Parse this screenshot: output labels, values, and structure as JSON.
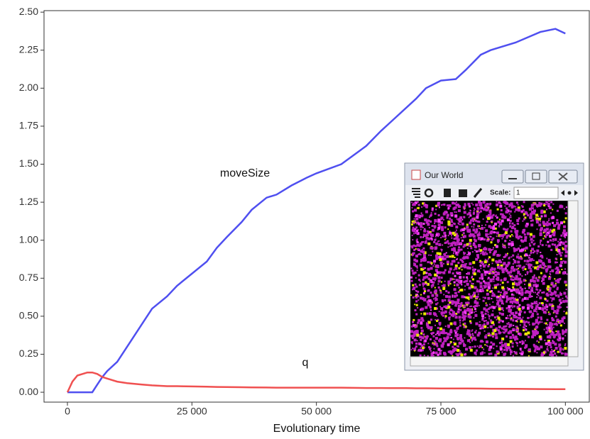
{
  "chart_data": {
    "type": "line",
    "x_label": "Evolutionary time",
    "x": [
      0,
      1000,
      2000,
      4000,
      5000,
      6000,
      7000,
      8000,
      10000,
      12000,
      15000,
      17000,
      20000,
      22000,
      25000,
      28000,
      30000,
      32000,
      35000,
      37000,
      40000,
      42000,
      45000,
      48000,
      50000,
      55000,
      60000,
      63000,
      65000,
      68000,
      70000,
      72000,
      75000,
      78000,
      80000,
      83000,
      85000,
      90000,
      95000,
      98000,
      100000
    ],
    "series": [
      {
        "name": "moveSize",
        "color": "#4f4ff0",
        "values": [
          0,
          0,
          0,
          0,
          0,
          0.05,
          0.1,
          0.14,
          0.2,
          0.3,
          0.45,
          0.55,
          0.63,
          0.7,
          0.78,
          0.86,
          0.95,
          1.02,
          1.12,
          1.2,
          1.28,
          1.3,
          1.36,
          1.41,
          1.44,
          1.5,
          1.62,
          1.72,
          1.78,
          1.87,
          1.93,
          2.0,
          2.05,
          2.06,
          2.12,
          2.22,
          2.25,
          2.3,
          2.37,
          2.39,
          2.36
        ]
      },
      {
        "name": "q",
        "color": "#f05050",
        "values": [
          0,
          0.07,
          0.11,
          0.13,
          0.13,
          0.12,
          0.1,
          0.09,
          0.07,
          0.06,
          0.05,
          0.045,
          0.04,
          0.04,
          0.038,
          0.036,
          0.035,
          0.034,
          0.033,
          0.032,
          0.031,
          0.03,
          0.03,
          0.03,
          0.03,
          0.03,
          0.028,
          0.028,
          0.027,
          0.027,
          0.026,
          0.026,
          0.025,
          0.025,
          0.025,
          0.024,
          0.023,
          0.022,
          0.021,
          0.02,
          0.02
        ]
      }
    ],
    "xlim": [
      -4700,
      104800
    ],
    "ylim": [
      -0.065,
      2.51
    ],
    "xticks": [
      0,
      {
        "value": 25000,
        "label": "25 000"
      },
      {
        "value": 50000,
        "label": "50 000"
      },
      {
        "value": 75000,
        "label": "75 000"
      },
      {
        "value": 100000,
        "label": "100 000"
      }
    ],
    "yticks": [
      {
        "value": 0,
        "label": "0.00"
      },
      {
        "value": 0.25,
        "label": "0.25"
      },
      {
        "value": 0.5,
        "label": "0.50"
      },
      {
        "value": 0.75,
        "label": "0.75"
      },
      {
        "value": 1,
        "label": "1.00"
      },
      {
        "value": 1.25,
        "label": "1.25"
      },
      {
        "value": 1.5,
        "label": "1.50"
      },
      {
        "value": 1.75,
        "label": "1.75"
      },
      {
        "value": 2,
        "label": "2.00"
      },
      {
        "value": 2.25,
        "label": "2.25"
      },
      {
        "value": 2.5,
        "label": "2.50"
      }
    ],
    "grid": false
  },
  "inset": {
    "title": "Our World",
    "scale_label": "Scale:",
    "scale_value": "1"
  }
}
